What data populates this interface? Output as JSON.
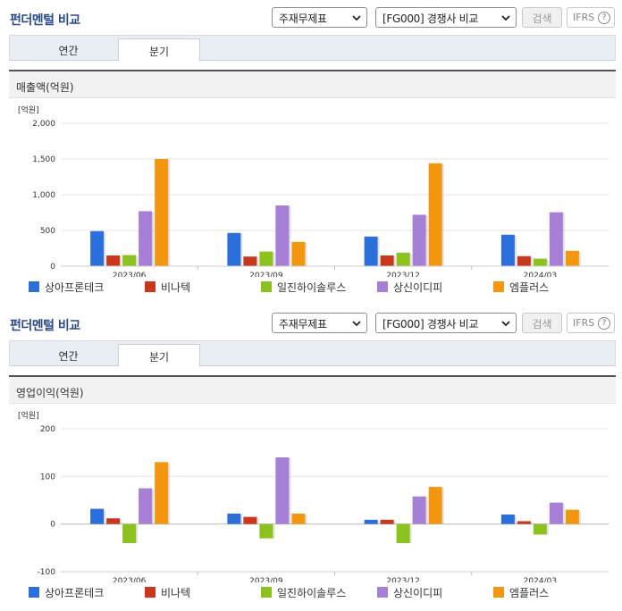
{
  "panels": [
    {
      "header": {
        "title": "펀더멘털 비교",
        "type_select": "주재무제표",
        "compare_select": "[FG000] 경쟁사 비교",
        "search_label": "검색",
        "ifrs_label": "IFRS",
        "help_glyph": "?"
      },
      "tabs": {
        "annual": "연간",
        "quarter": "분기",
        "active": "분기"
      },
      "chart_title": "매출액(억원)"
    },
    {
      "header": {
        "title": "펀더멘털 비교",
        "type_select": "주재무제표",
        "compare_select": "[FG000] 경쟁사 비교",
        "search_label": "검색",
        "ifrs_label": "IFRS",
        "help_glyph": "?"
      },
      "tabs": {
        "annual": "연간",
        "quarter": "분기",
        "active": "분기"
      },
      "chart_title": "영업이익(억원)"
    }
  ],
  "chart_data": [
    {
      "type": "bar",
      "title": "매출액(억원)",
      "unit_label": "[억원]",
      "categories": [
        "2023/06",
        "2023/09",
        "2023/12",
        "2024/03"
      ],
      "ylim": [
        0,
        2000
      ],
      "yticks": [
        0,
        500,
        1000,
        1500,
        2000
      ],
      "ytick_labels": [
        "0",
        "500",
        "1,000",
        "1,500",
        "2,000"
      ],
      "grid": true,
      "legend_position": "bottom",
      "series": [
        {
          "name": "상아프론테크",
          "color": "#2a6fdb",
          "values": [
            490,
            465,
            415,
            440
          ]
        },
        {
          "name": "비나텍",
          "color": "#c9381c",
          "values": [
            150,
            135,
            150,
            140
          ]
        },
        {
          "name": "일진하이솔루스",
          "color": "#8cc21e",
          "values": [
            155,
            205,
            190,
            105
          ]
        },
        {
          "name": "상신이디피",
          "color": "#a77fd6",
          "values": [
            770,
            850,
            720,
            755
          ]
        },
        {
          "name": "엠플러스",
          "color": "#f5960f",
          "values": [
            1500,
            340,
            1440,
            215
          ]
        }
      ]
    },
    {
      "type": "bar",
      "title": "영업이익(억원)",
      "unit_label": "[억원]",
      "categories": [
        "2023/06",
        "2023/09",
        "2023/12",
        "2024/03"
      ],
      "ylim": [
        -100,
        200
      ],
      "yticks": [
        -100,
        0,
        100,
        200
      ],
      "ytick_labels": [
        "-100",
        "0",
        "100",
        "200"
      ],
      "grid": true,
      "legend_position": "bottom",
      "series": [
        {
          "name": "상아프론테크",
          "color": "#2a6fdb",
          "values": [
            32,
            22,
            9,
            20
          ]
        },
        {
          "name": "비나텍",
          "color": "#c9381c",
          "values": [
            12,
            15,
            9,
            6
          ]
        },
        {
          "name": "일진하이솔루스",
          "color": "#8cc21e",
          "values": [
            -40,
            -30,
            -40,
            -22
          ]
        },
        {
          "name": "상신이디피",
          "color": "#a77fd6",
          "values": [
            75,
            140,
            58,
            45
          ]
        },
        {
          "name": "엠플러스",
          "color": "#f5960f",
          "values": [
            130,
            22,
            78,
            30
          ]
        }
      ]
    }
  ]
}
